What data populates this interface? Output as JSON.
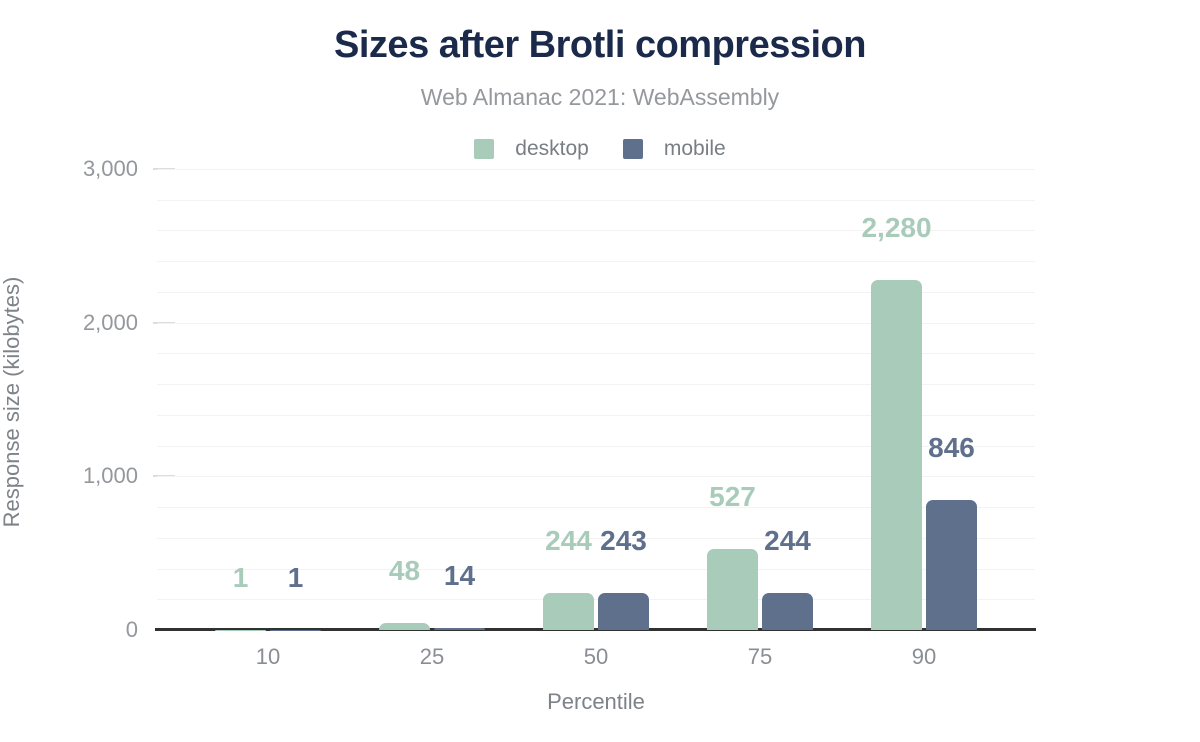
{
  "header": {
    "title": "Sizes after Brotli compression",
    "subtitle": "Web Almanac 2021: WebAssembly"
  },
  "colors": {
    "desktop": "#a8cbba",
    "mobile": "#5f708d",
    "title": "#1b2a4a",
    "axis_line": "#313131",
    "gridline": "#f3f3f3"
  },
  "chart_data": {
    "type": "bar",
    "title": "Sizes after Brotli compression",
    "subtitle": "Web Almanac 2021: WebAssembly",
    "xlabel": "Percentile",
    "ylabel": "Response size (kilobytes)",
    "categories": [
      "10",
      "25",
      "50",
      "75",
      "90"
    ],
    "series": [
      {
        "name": "desktop",
        "color": "#a8cbba",
        "values": [
          1,
          48,
          244,
          527,
          2280
        ],
        "value_labels": [
          "1",
          "48",
          "244",
          "527",
          "2,280"
        ]
      },
      {
        "name": "mobile",
        "color": "#5f708d",
        "values": [
          1,
          14,
          243,
          244,
          846
        ],
        "value_labels": [
          "1",
          "14",
          "243",
          "244",
          "846"
        ]
      }
    ],
    "ylim": [
      0,
      3000
    ],
    "yticks": [
      {
        "value": 0,
        "label": "0"
      },
      {
        "value": 1000,
        "label": "1,000"
      },
      {
        "value": 2000,
        "label": "2,000"
      },
      {
        "value": 3000,
        "label": "3,000"
      }
    ],
    "minor_grid_step": 200,
    "grid": "on",
    "legend_position": "top"
  }
}
